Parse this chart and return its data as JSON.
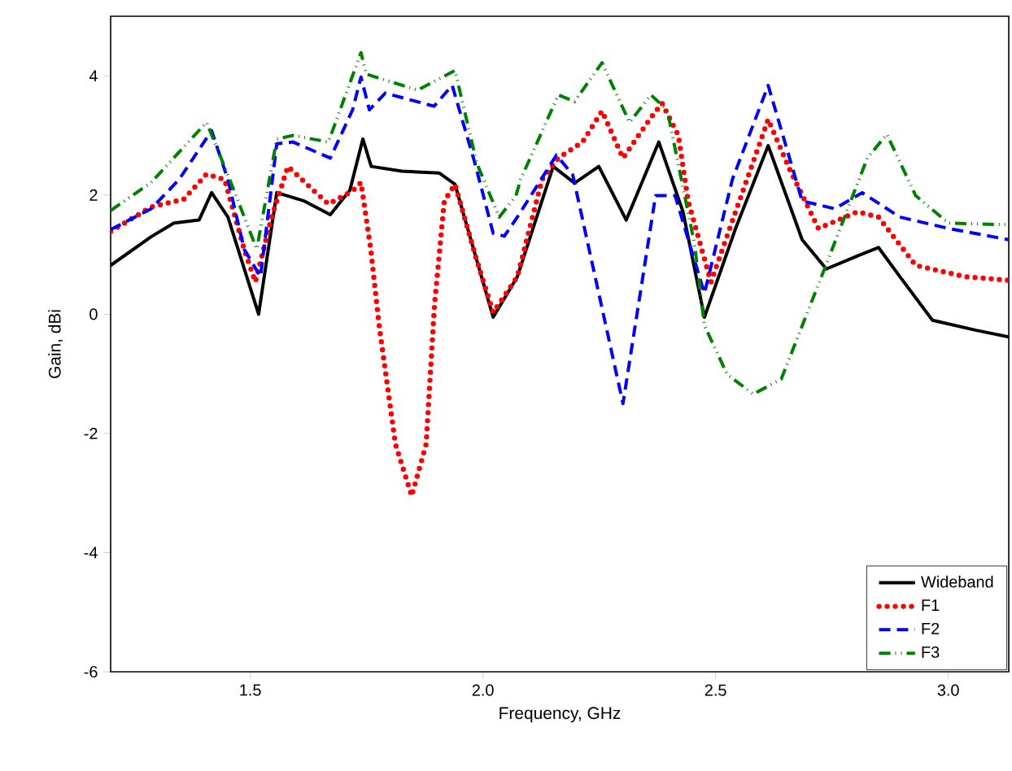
{
  "chart_data": {
    "type": "line",
    "xlabel": "Frequency, GHz",
    "ylabel": "Gain, dBi",
    "xlim": [
      1.2,
      3.13
    ],
    "ylim": [
      -6,
      5
    ],
    "xticks": [
      1.5,
      {
        "value": 2.0,
        "label": "2.0"
      },
      2.5,
      {
        "value": 3.0,
        "label": "3.0"
      }
    ],
    "yticks": [
      -6,
      -4,
      -2,
      0,
      2,
      4
    ],
    "grid": false,
    "legend": "bottom right",
    "marker": "none",
    "series": [
      {
        "name": "Wideband",
        "color": "#000000",
        "line_style": "solid",
        "x": [
          1.2,
          1.287,
          1.336,
          1.39,
          1.417,
          1.452,
          1.518,
          1.557,
          1.616,
          1.672,
          1.714,
          1.742,
          1.76,
          1.826,
          1.906,
          1.94,
          1.987,
          2.022,
          2.074,
          2.151,
          2.197,
          2.249,
          2.308,
          2.378,
          2.43,
          2.476,
          2.543,
          2.613,
          2.686,
          2.738,
          2.805,
          2.85,
          2.896,
          2.966,
          3.06,
          3.13
        ],
        "values": [
          0.82,
          1.3,
          1.53,
          1.58,
          2.04,
          1.63,
          0.0,
          2.04,
          1.9,
          1.67,
          2.08,
          2.94,
          2.48,
          2.4,
          2.37,
          2.18,
          0.9,
          -0.05,
          0.63,
          2.48,
          2.2,
          2.48,
          1.58,
          2.89,
          1.72,
          -0.05,
          1.44,
          2.83,
          1.25,
          0.76,
          0.98,
          1.12,
          0.63,
          -0.1,
          -0.27,
          -0.38
        ]
      },
      {
        "name": "F1",
        "color": "#ff0000",
        "line_style": "dotted",
        "x": [
          1.2,
          1.287,
          1.357,
          1.406,
          1.445,
          1.487,
          1.511,
          1.546,
          1.581,
          1.637,
          1.668,
          1.72,
          1.738,
          1.759,
          1.777,
          1.812,
          1.847,
          1.878,
          1.896,
          1.917,
          1.94,
          1.987,
          2.022,
          2.074,
          2.127,
          2.162,
          2.214,
          2.256,
          2.301,
          2.361,
          2.385,
          2.42,
          2.441,
          2.49,
          2.543,
          2.613,
          2.658,
          2.721,
          2.805,
          2.85,
          2.93,
          3.036,
          3.13
        ],
        "values": [
          1.39,
          1.8,
          1.93,
          2.35,
          2.26,
          1.09,
          0.54,
          1.63,
          2.48,
          2.07,
          1.85,
          2.07,
          2.21,
          1.09,
          -0.19,
          -2.18,
          -3.05,
          -2.18,
          0.16,
          1.9,
          2.18,
          0.9,
          0.03,
          0.63,
          2.26,
          2.62,
          2.89,
          3.41,
          2.62,
          3.3,
          3.54,
          3.0,
          1.9,
          0.54,
          1.72,
          3.27,
          2.45,
          1.44,
          1.72,
          1.63,
          0.82,
          0.63,
          0.57
        ]
      },
      {
        "name": "F2",
        "color": "#0000ff",
        "line_style": "dashed",
        "x": [
          1.2,
          1.287,
          1.347,
          1.417,
          1.452,
          1.487,
          1.522,
          1.557,
          1.592,
          1.672,
          1.72,
          1.738,
          1.756,
          1.79,
          1.895,
          1.934,
          1.983,
          2.022,
          2.046,
          2.074,
          2.158,
          2.193,
          2.301,
          2.371,
          2.413,
          2.476,
          2.536,
          2.613,
          2.686,
          2.756,
          2.815,
          2.896,
          3.0,
          3.13
        ],
        "values": [
          1.42,
          1.77,
          2.26,
          3.08,
          2.26,
          1.09,
          0.63,
          2.86,
          2.89,
          2.62,
          3.43,
          3.98,
          3.43,
          3.71,
          3.49,
          3.84,
          2.53,
          1.36,
          1.31,
          1.63,
          2.67,
          2.34,
          -1.5,
          1.99,
          1.99,
          0.35,
          2.26,
          3.84,
          1.9,
          1.77,
          2.04,
          1.63,
          1.44,
          1.25
        ]
      },
      {
        "name": "F3",
        "color": "#008000",
        "line_style": "dashdotdotted",
        "x": [
          1.2,
          1.287,
          1.406,
          1.452,
          1.514,
          1.557,
          1.592,
          1.668,
          1.738,
          1.749,
          1.86,
          1.94,
          1.987,
          2.035,
          2.071,
          2.081,
          2.162,
          2.197,
          2.256,
          2.315,
          2.361,
          2.396,
          2.455,
          2.476,
          2.525,
          2.581,
          2.641,
          2.745,
          2.826,
          2.868,
          2.93,
          3.0,
          3.13
        ],
        "values": [
          1.74,
          2.21,
          3.22,
          2.34,
          1.09,
          2.94,
          3.0,
          2.89,
          4.39,
          4.03,
          3.76,
          4.09,
          2.53,
          1.63,
          1.99,
          2.26,
          3.68,
          3.57,
          4.22,
          3.22,
          3.68,
          3.43,
          1.17,
          -0.19,
          -1.01,
          -1.34,
          -1.09,
          0.98,
          2.62,
          3.02,
          1.99,
          1.53,
          1.5
        ]
      }
    ]
  }
}
